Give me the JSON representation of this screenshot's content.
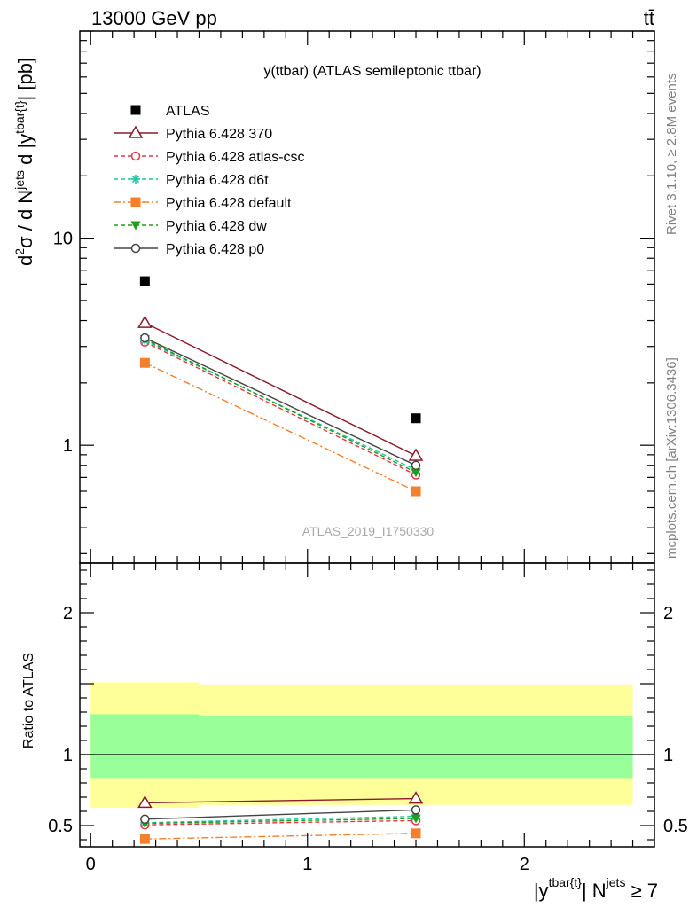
{
  "header": {
    "left": "13000 GeV pp",
    "right": "tt̄"
  },
  "side_labels": {
    "rivet": "Rivet 3.1.10, ≥ 2.8M events",
    "mcplots": "mcplots.cern.ch [arXiv:1306.3436]"
  },
  "chart_data": [
    {
      "type": "scatter",
      "panel": "main",
      "title": "y(ttbar) (ATLAS semileptonic ttbar)",
      "watermark": "ATLAS_2019_I1750330",
      "ylabel": "d²σ / d N^jets d |y^tbar{t}| [pb]",
      "yscale": "log",
      "ylim": [
        0.27,
        100
      ],
      "xlim": [
        -0.05,
        2.6
      ],
      "yticks": [
        1,
        10
      ],
      "legend_position": "top-left",
      "x": [
        0.25,
        1.5
      ],
      "series": [
        {
          "name": "ATLAS",
          "color": "#000000",
          "marker": "filled-square",
          "line": "none",
          "values": [
            6.2,
            1.35
          ]
        },
        {
          "name": "Pythia 6.428 370",
          "color": "#8b1a2b",
          "marker": "open-triangle",
          "line": "solid",
          "values": [
            3.9,
            0.89
          ]
        },
        {
          "name": "Pythia 6.428 atlas-csc",
          "color": "#e8334a",
          "marker": "open-circle",
          "line": "dashed",
          "values": [
            3.15,
            0.72
          ]
        },
        {
          "name": "Pythia 6.428 d6t",
          "color": "#1ec8a0",
          "marker": "star",
          "line": "dashed",
          "values": [
            3.2,
            0.76
          ]
        },
        {
          "name": "Pythia 6.428 default",
          "color": "#f57f2a",
          "marker": "filled-square",
          "line": "dashdot",
          "values": [
            2.5,
            0.6
          ]
        },
        {
          "name": "Pythia 6.428 dw",
          "color": "#1aa01a",
          "marker": "filled-triangle-down",
          "line": "dashed",
          "values": [
            3.25,
            0.74
          ]
        },
        {
          "name": "Pythia 6.428 p0",
          "color": "#444444",
          "marker": "open-circle",
          "line": "solid",
          "values": [
            3.3,
            0.8
          ]
        }
      ]
    },
    {
      "type": "scatter",
      "panel": "ratio",
      "ylabel": "Ratio to ATLAS",
      "xlabel": "|y^tbar{t}| N^jets ≥ 7",
      "ylim": [
        0.35,
        2.35
      ],
      "xlim": [
        -0.05,
        2.6
      ],
      "xticks": [
        0,
        1,
        2
      ],
      "yticks": [
        0.5,
        1,
        2
      ],
      "reference_line": 1,
      "bands": [
        {
          "x_range": [
            0,
            0.5
          ],
          "yellow": [
            0.625,
            1.51
          ],
          "green": [
            0.835,
            1.285
          ]
        },
        {
          "x_range": [
            0.5,
            2.5
          ],
          "yellow": [
            0.645,
            1.495
          ],
          "green": [
            0.835,
            1.275
          ]
        }
      ],
      "x": [
        0.25,
        1.5
      ],
      "series": [
        {
          "name": "Pythia 6.428 370",
          "color": "#8b1a2b",
          "marker": "open-triangle",
          "line": "solid",
          "values": [
            0.66,
            0.69
          ]
        },
        {
          "name": "Pythia 6.428 atlas-csc",
          "color": "#e8334a",
          "marker": "open-circle",
          "line": "dashed",
          "values": [
            0.505,
            0.535
          ]
        },
        {
          "name": "Pythia 6.428 d6t",
          "color": "#1ec8a0",
          "marker": "star",
          "line": "dashed",
          "values": [
            0.52,
            0.565
          ]
        },
        {
          "name": "Pythia 6.428 default",
          "color": "#f57f2a",
          "marker": "filled-square",
          "line": "dashdot",
          "values": [
            0.405,
            0.445
          ]
        },
        {
          "name": "Pythia 6.428 dw",
          "color": "#1aa01a",
          "marker": "filled-triangle-down",
          "line": "dashed",
          "values": [
            0.515,
            0.55
          ]
        },
        {
          "name": "Pythia 6.428 p0",
          "color": "#444444",
          "marker": "open-circle",
          "line": "solid",
          "values": [
            0.545,
            0.61
          ]
        }
      ]
    }
  ]
}
